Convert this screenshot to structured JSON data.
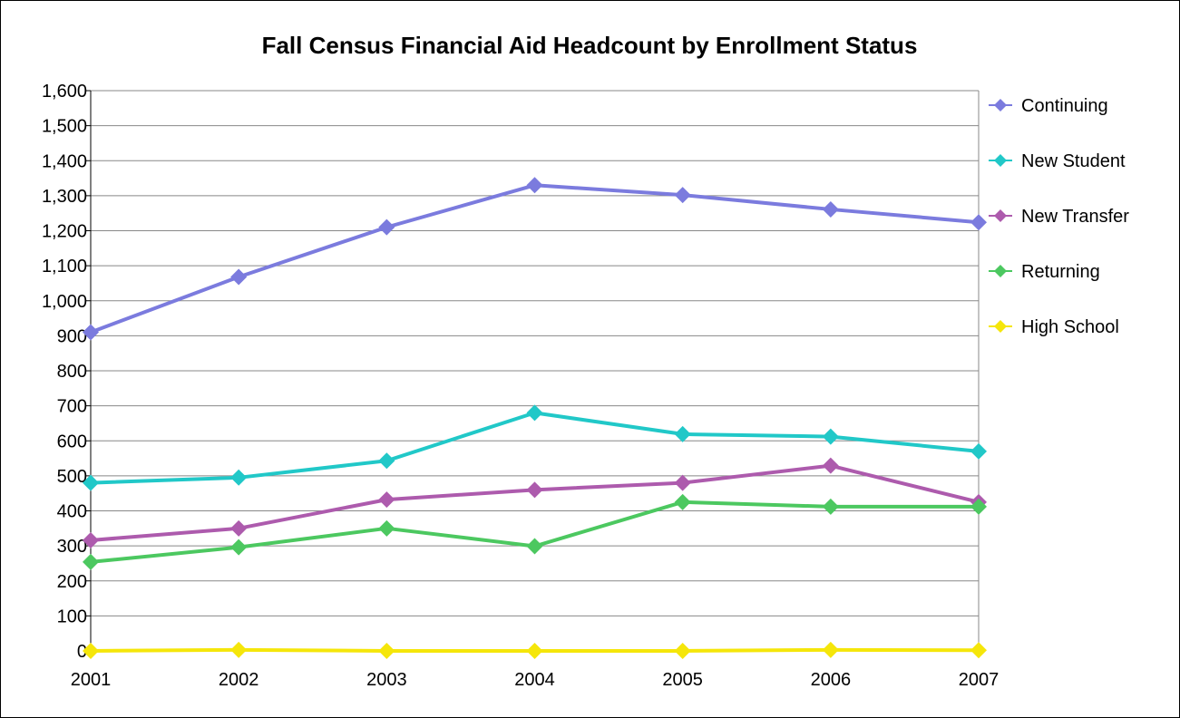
{
  "chart_data": {
    "type": "line",
    "title": "Fall Census Financial Aid Headcount by Enrollment Status",
    "xlabel": "",
    "ylabel": "",
    "categories": [
      "2001",
      "2002",
      "2003",
      "2004",
      "2005",
      "2006",
      "2007"
    ],
    "ylim": [
      0,
      1600
    ],
    "y_ticks": [
      0,
      100,
      200,
      300,
      400,
      500,
      600,
      700,
      800,
      900,
      1000,
      1100,
      1200,
      1300,
      1400,
      1500,
      1600
    ],
    "y_tick_labels": [
      "0",
      "100",
      "200",
      "300",
      "400",
      "500",
      "600",
      "700",
      "800",
      "900",
      "1,000",
      "1,100",
      "1,200",
      "1,300",
      "1,400",
      "1,500",
      "1,600"
    ],
    "grid": true,
    "legend_position": "right",
    "series": [
      {
        "name": "Continuing",
        "color": "#7b7bde",
        "values": [
          910,
          1068,
          1210,
          1330,
          1302,
          1261,
          1224
        ]
      },
      {
        "name": "New Student",
        "color": "#21c8c8",
        "values": [
          480,
          495,
          543,
          680,
          619,
          612,
          570
        ]
      },
      {
        "name": "New Transfer",
        "color": "#ad5bad",
        "values": [
          316,
          350,
          432,
          460,
          480,
          529,
          425
        ]
      },
      {
        "name": "Returning",
        "color": "#4cc860",
        "values": [
          254,
          296,
          350,
          299,
          425,
          412,
          412
        ]
      },
      {
        "name": "High School",
        "color": "#f5e60a",
        "values": [
          0,
          3,
          0,
          0,
          0,
          3,
          2
        ]
      }
    ],
    "marker": "diamond"
  }
}
